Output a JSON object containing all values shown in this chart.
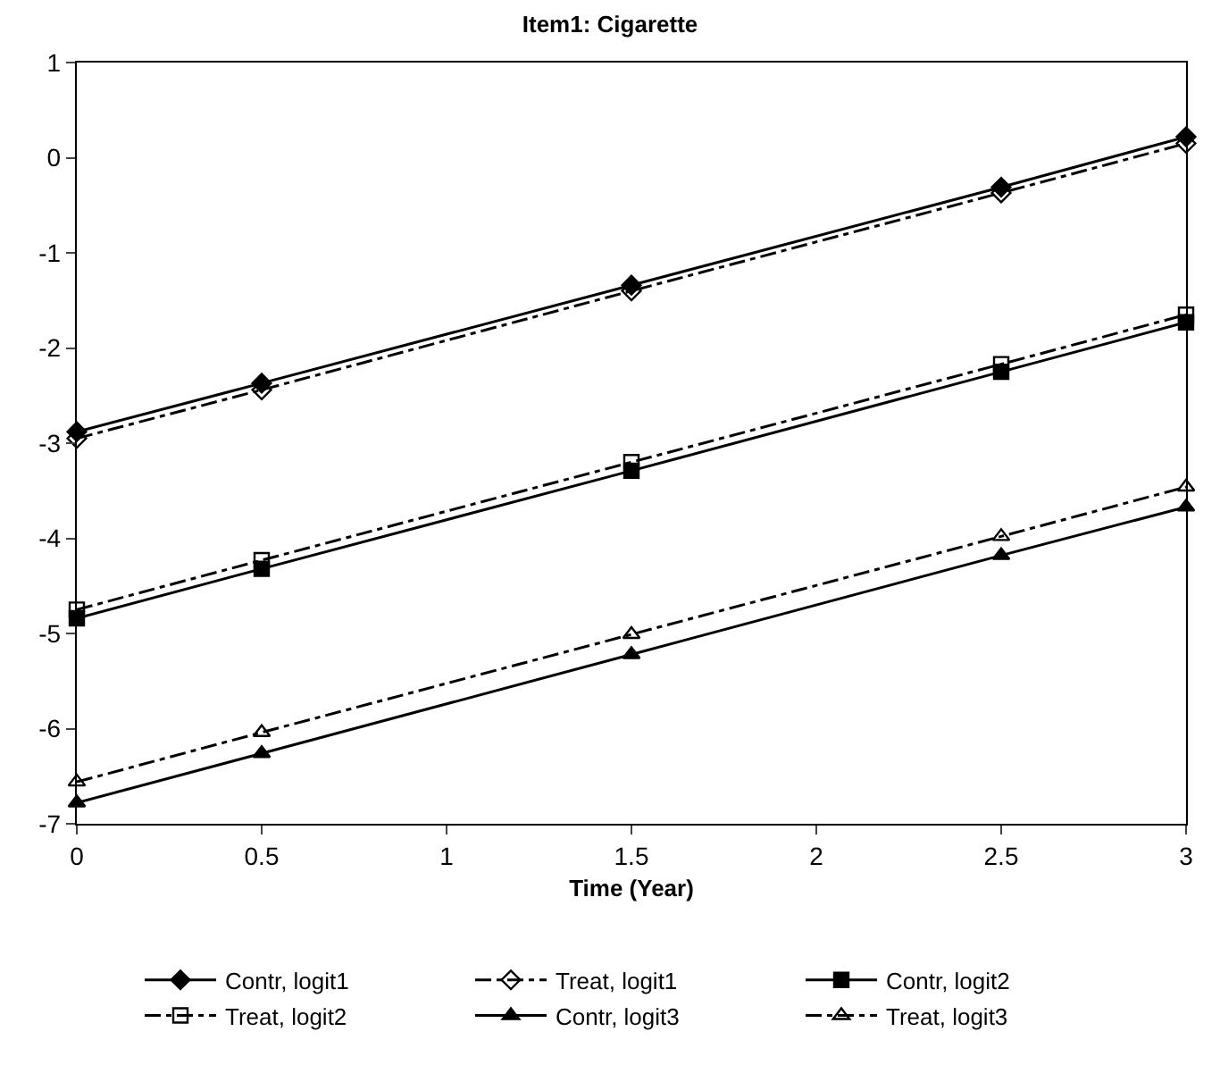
{
  "chart_data": {
    "type": "line",
    "title": "Item1: Cigarette",
    "xlabel": "Time (Year)",
    "x": [
      0,
      0.5,
      1.5,
      2.5,
      3
    ],
    "xlim": [
      0,
      3
    ],
    "xticks": [
      0,
      0.5,
      1,
      1.5,
      2,
      2.5,
      3
    ],
    "ylim": [
      -7,
      1
    ],
    "yticks": [
      -7,
      -6,
      -5,
      -4,
      -3,
      -2,
      -1,
      0,
      1
    ],
    "grid": false,
    "legend": "bottom",
    "series": [
      {
        "name": "Contr, logit1",
        "color": "#000000",
        "marker": "diamond",
        "line_style": "solid",
        "values": [
          -2.88,
          -2.37,
          -1.34,
          -0.31,
          0.22
        ]
      },
      {
        "name": "Treat, logit1",
        "color": "#000000",
        "marker": "diamond",
        "line_style": "dashdot",
        "values": [
          -2.95,
          -2.44,
          -1.4,
          -0.37,
          0.15
        ]
      },
      {
        "name": "Contr, logit2",
        "color": "#000000",
        "marker": "square",
        "line_style": "solid",
        "values": [
          -4.84,
          -4.32,
          -3.29,
          -2.25,
          -1.73
        ]
      },
      {
        "name": "Treat, logit2",
        "color": "#000000",
        "marker": "square",
        "line_style": "dashdot",
        "values": [
          -4.75,
          -4.23,
          -3.2,
          -2.17,
          -1.65
        ]
      },
      {
        "name": "Contr, logit3",
        "color": "#000000",
        "marker": "triangle",
        "line_style": "solid",
        "values": [
          -6.78,
          -6.26,
          -5.22,
          -4.18,
          -3.67
        ]
      },
      {
        "name": "Treat, logit3",
        "color": "#000000",
        "marker": "triangle",
        "line_style": "dashdot",
        "values": [
          -6.56,
          -6.04,
          -5.01,
          -3.98,
          -3.46
        ]
      }
    ]
  }
}
